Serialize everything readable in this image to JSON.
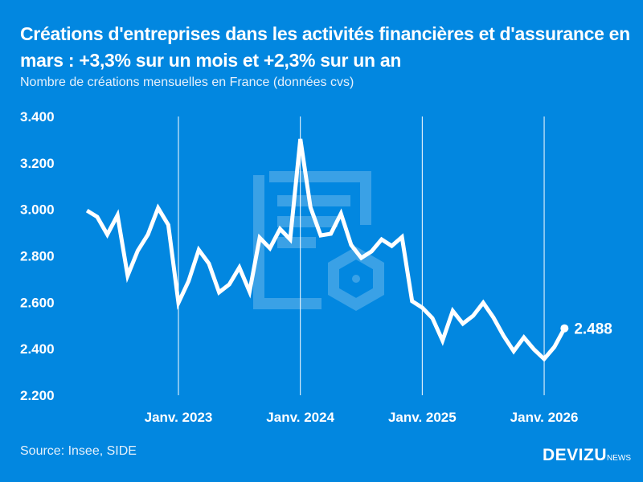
{
  "header": {
    "title": "Créations d'entreprises dans les activités financières et d'assurance en mars : +3,3% sur un mois et +2,3% sur un an",
    "subtitle": "Nombre de créations mensuelles en France (données cvs)"
  },
  "footer": {
    "source": "Source: Insee, SIDE",
    "logo": "DEVIZU",
    "logo_suffix": "NEWS"
  },
  "colors": {
    "background": "#0287e0",
    "line": "#ffffff"
  },
  "chart_data": {
    "type": "line",
    "title": "Créations d'entreprises dans les activités financières et d'assurance en mars : +3,3% sur un mois et +2,3% sur un an",
    "subtitle": "Nombre de créations mensuelles en France (données cvs)",
    "ylim": [
      2200,
      3400
    ],
    "yticks": [
      2200,
      2400,
      2600,
      2800,
      3000,
      3200,
      3400
    ],
    "ytick_labels": [
      "2.200",
      "2.400",
      "2.600",
      "2.800",
      "3.000",
      "3.200",
      "3.400"
    ],
    "xtick_labels": [
      "Janv. 2023",
      "Janv. 2024",
      "Janv. 2025",
      "Janv. 2026"
    ],
    "xtick_months": [
      "2023-01",
      "2024-01",
      "2025-01",
      "2026-01"
    ],
    "grid": "vertical at January",
    "x": [
      "2022-04",
      "2022-05",
      "2022-06",
      "2022-07",
      "2022-08",
      "2022-09",
      "2022-10",
      "2022-11",
      "2022-12",
      "2023-01",
      "2023-02",
      "2023-03",
      "2023-04",
      "2023-05",
      "2023-06",
      "2023-07",
      "2023-08",
      "2023-09",
      "2023-10",
      "2023-11",
      "2023-12",
      "2024-01",
      "2024-02",
      "2024-03",
      "2024-04",
      "2024-05",
      "2024-06",
      "2024-07",
      "2024-08",
      "2024-09",
      "2024-10",
      "2024-11",
      "2024-12",
      "2025-01",
      "2025-02",
      "2025-03",
      "2025-04",
      "2025-05",
      "2025-06",
      "2025-07",
      "2025-08",
      "2025-09",
      "2025-10",
      "2025-11",
      "2025-12",
      "2026-01",
      "2026-02",
      "2026-03"
    ],
    "values": [
      2995,
      2968,
      2892,
      2975,
      2715,
      2822,
      2892,
      3006,
      2933,
      2598,
      2691,
      2826,
      2767,
      2643,
      2677,
      2750,
      2646,
      2878,
      2833,
      2916,
      2871,
      3303,
      3009,
      2888,
      2895,
      2982,
      2847,
      2791,
      2819,
      2871,
      2843,
      2881,
      2605,
      2577,
      2532,
      2435,
      2563,
      2508,
      2542,
      2598,
      2535,
      2456,
      2390,
      2449,
      2397,
      2356,
      2408,
      2488
    ],
    "last_label": "2.488"
  }
}
